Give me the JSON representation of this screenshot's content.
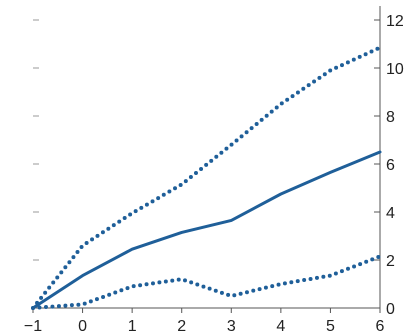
{
  "chart_data": {
    "type": "line",
    "title": "",
    "xlabel": "",
    "ylabel": "",
    "x": [
      -1,
      0,
      1,
      2,
      3,
      4,
      5,
      6
    ],
    "xlim": [
      -1,
      6
    ],
    "ylim": [
      0,
      12
    ],
    "x_ticks": [
      "−1",
      "0",
      "1",
      "2",
      "3",
      "4",
      "5",
      "6"
    ],
    "y_ticks": [
      "0",
      "2",
      "4",
      "6",
      "8",
      "10",
      "12"
    ],
    "y_axis_side": "right",
    "grid": false,
    "legend": "none",
    "colors": {
      "series": "#1f5f99"
    },
    "series": [
      {
        "style": "solid",
        "values": [
          0,
          1.35,
          2.45,
          3.15,
          3.65,
          4.75,
          5.65,
          6.5
        ]
      },
      {
        "style": "dotted",
        "values": [
          0,
          2.6,
          3.95,
          5.15,
          6.8,
          8.5,
          9.9,
          10.85
        ]
      },
      {
        "style": "dotted",
        "values": [
          0,
          0.15,
          0.9,
          1.2,
          0.5,
          1.0,
          1.35,
          2.15
        ]
      }
    ]
  }
}
